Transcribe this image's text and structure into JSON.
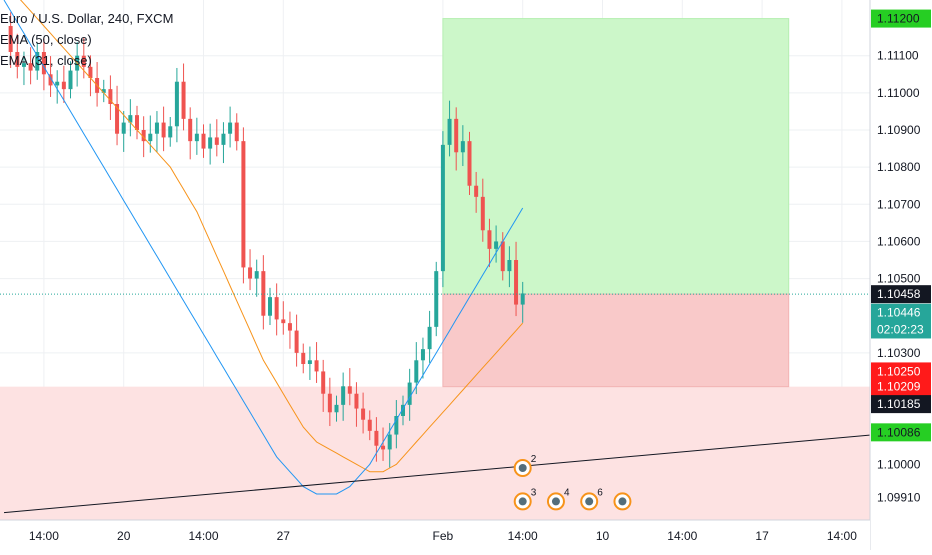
{
  "legend": {
    "symbol": "Euro / U.S. Dollar, 240, FXCM",
    "ema_slow": "EMA (50, close)",
    "ema_fast": "EMA (31, close)"
  },
  "colors": {
    "up": "#26a69a",
    "down": "#ef5350",
    "ema_slow": "#f7931a",
    "ema_fast": "#2196f3",
    "profit_zone": "#ccf7c9",
    "loss_zone": "#f9c9c9",
    "support_zone": "#fde2e2",
    "trendline": "#131722"
  },
  "price_labels": [
    {
      "text": "1.11200",
      "price": 1.112,
      "bg": "#26ce23",
      "fg": "#131722"
    },
    {
      "text": "1.10458",
      "price": 1.10458,
      "bg": "#131722",
      "fg": "#ffffff"
    },
    {
      "text": "1.10446",
      "price": 1.10408,
      "bg": "#26a69a",
      "fg": "#ffffff"
    },
    {
      "text": "02:02:23",
      "price": 1.10363,
      "bg": "#26a69a",
      "fg": "#ffffff"
    },
    {
      "text": "1.10250",
      "price": 1.1025,
      "bg": "#ff1a1a",
      "fg": "#ffffff"
    },
    {
      "text": "1.10209",
      "price": 1.10209,
      "bg": "#ff1a1a",
      "fg": "#ffffff"
    },
    {
      "text": "1.10185",
      "price": 1.10162,
      "bg": "#131722",
      "fg": "#ffffff"
    },
    {
      "text": "1.10086",
      "price": 1.10086,
      "bg": "#26ce23",
      "fg": "#131722"
    }
  ],
  "event_badges": [
    {
      "x_index": 78,
      "price": 1.0999,
      "count": "2"
    },
    {
      "x_index": 78,
      "price": 1.099,
      "count": "3"
    },
    {
      "x_index": 83,
      "price": 1.099,
      "count": "4"
    },
    {
      "x_index": 88,
      "price": 1.099,
      "count": "6"
    },
    {
      "x_index": 93,
      "price": 1.099,
      "count": ""
    }
  ],
  "chart_data": {
    "type": "candlestick",
    "title": "Euro / U.S. Dollar, 240, FXCM",
    "ylim": [
      1.0985,
      1.1125
    ],
    "y_ticks": [
      "1.11100",
      "1.11000",
      "1.10900",
      "1.10800",
      "1.10700",
      "1.10600",
      "1.10500",
      "1.10300",
      "1.10000",
      "1.09910"
    ],
    "y_tick_values": [
      1.111,
      1.11,
      1.109,
      1.108,
      1.107,
      1.106,
      1.105,
      1.103,
      1.1,
      1.0991
    ],
    "x_ticks": [
      {
        "label": "14:00",
        "index": 6
      },
      {
        "label": "20",
        "index": 18
      },
      {
        "label": "14:00",
        "index": 30
      },
      {
        "label": "27",
        "index": 42
      },
      {
        "label": "Feb",
        "index": 66
      },
      {
        "label": "14:00",
        "index": 78
      },
      {
        "label": "10",
        "index": 90
      },
      {
        "label": "14:00",
        "index": 102
      },
      {
        "label": "17",
        "index": 114
      },
      {
        "label": "14:00",
        "index": 126
      }
    ],
    "last_index": 131,
    "close": [
      1.1118,
      1.1111,
      1.1107,
      1.1108,
      1.1106,
      1.1111,
      1.1105,
      1.1102,
      1.1103,
      1.1101,
      1.1106,
      1.111,
      1.1107,
      1.1104,
      1.11,
      1.1101,
      1.1097,
      1.1089,
      1.1092,
      1.1094,
      1.109,
      1.1087,
      1.1089,
      1.1092,
      1.1088,
      1.1091,
      1.1103,
      1.1093,
      1.1087,
      1.1089,
      1.1085,
      1.1088,
      1.1086,
      1.1089,
      1.1092,
      1.1087,
      1.1053,
      1.105,
      1.1052,
      1.104,
      1.1045,
      1.1039,
      1.1038,
      1.1036,
      1.103,
      1.1027,
      1.1028,
      1.1025,
      1.1019,
      1.1014,
      1.1016,
      1.1021,
      1.1019,
      1.1015,
      1.1012,
      1.1009,
      1.1005,
      1.1004,
      1.1008,
      1.1013,
      1.1016,
      1.1022,
      1.1028,
      1.1031,
      1.1037,
      1.1052,
      1.1086,
      1.1093,
      1.1084,
      1.1087,
      1.1075,
      1.1072,
      1.1063,
      1.1058,
      1.106,
      1.1052,
      1.1055,
      1.1043,
      1.1046
    ],
    "ema_slow": [
      1.113,
      1.1128,
      1.1126,
      1.1124,
      1.1122,
      1.112,
      1.1118,
      1.1116,
      1.1114,
      1.1112,
      1.111,
      1.1108,
      1.1106,
      1.1104,
      1.1102,
      1.11,
      1.1098,
      1.1096,
      1.1094,
      1.1092,
      1.109,
      1.1088,
      1.1086,
      1.1084,
      1.1082,
      1.108,
      1.1077,
      1.1074,
      1.1071,
      1.1068,
      1.1064,
      1.106,
      1.1056,
      1.1052,
      1.1048,
      1.1044,
      1.104,
      1.1036,
      1.1032,
      1.1028,
      1.1025,
      1.1022,
      1.1019,
      1.1016,
      1.1013,
      1.101,
      1.1008,
      1.1006,
      1.1005,
      1.1004,
      1.1003,
      1.1002,
      1.1001,
      1.1,
      1.0999,
      1.0998,
      1.0998,
      1.0998,
      1.0999,
      1.1,
      1.1002,
      1.1004,
      1.1006,
      1.1008,
      1.101,
      1.1012,
      1.1014,
      1.1016,
      1.1018,
      1.102,
      1.1022,
      1.1024,
      1.1026,
      1.1028,
      1.103,
      1.1032,
      1.1034,
      1.1036,
      1.1038
    ],
    "ema_fast": [
      1.1125,
      1.1122,
      1.1119,
      1.1116,
      1.1113,
      1.111,
      1.1107,
      1.1104,
      1.1101,
      1.1098,
      1.1095,
      1.1092,
      1.1089,
      1.1086,
      1.1083,
      1.108,
      1.1077,
      1.1074,
      1.1071,
      1.1068,
      1.1065,
      1.1062,
      1.1059,
      1.1056,
      1.1053,
      1.105,
      1.1047,
      1.1044,
      1.1041,
      1.1038,
      1.1035,
      1.1032,
      1.1029,
      1.1026,
      1.1023,
      1.102,
      1.1017,
      1.1014,
      1.1011,
      1.1008,
      1.1005,
      1.1002,
      1.1,
      1.0998,
      1.0996,
      1.0994,
      1.0993,
      1.0992,
      1.0992,
      1.0992,
      1.0992,
      1.0993,
      1.0994,
      1.0996,
      1.0998,
      1.1,
      1.1003,
      1.1006,
      1.1009,
      1.1012,
      1.1015,
      1.1018,
      1.1021,
      1.1024,
      1.1027,
      1.103,
      1.1033,
      1.1036,
      1.1039,
      1.1042,
      1.1045,
      1.1048,
      1.1051,
      1.1054,
      1.1057,
      1.106,
      1.1063,
      1.1066,
      1.1069
    ],
    "profit_zone": {
      "x_from_index": 66,
      "x_to_index": 118,
      "price_from": 1.10458,
      "price_to": 1.112
    },
    "loss_zone": {
      "x_from_index": 66,
      "x_to_index": 118,
      "price_from": 1.10209,
      "price_to": 1.10458
    },
    "support_zone": {
      "price_from": 1.0985,
      "price_to": 1.10209
    },
    "trendline": {
      "from": {
        "index": 0,
        "price": 1.0987
      },
      "to": {
        "index": 131,
        "price": 1.1008
      }
    },
    "current_price": 1.10458
  }
}
